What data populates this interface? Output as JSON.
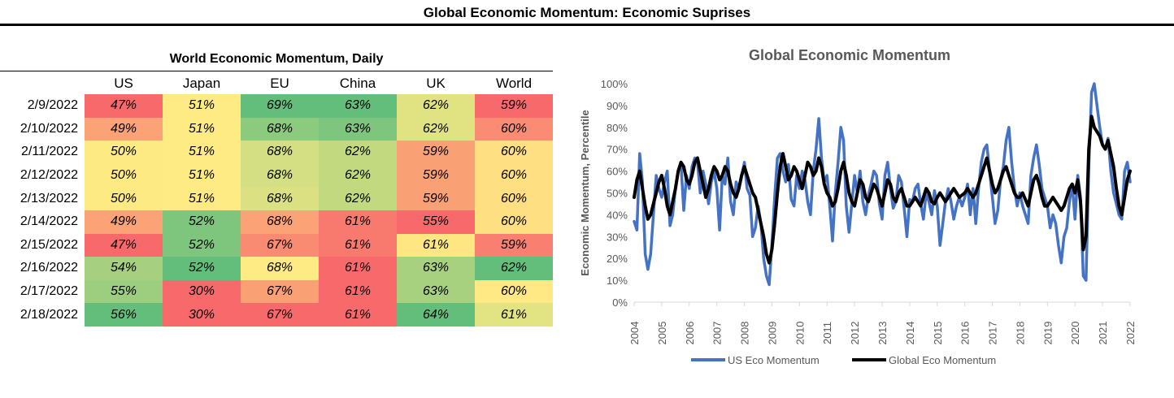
{
  "page": {
    "title": "Global Economic Momentum: Economic Suprises"
  },
  "heatmap": {
    "title": "World Economic Momentum, Daily",
    "columns": [
      "US",
      "Japan",
      "EU",
      "China",
      "UK",
      "World"
    ],
    "rows": [
      {
        "date": "2/9/2022",
        "values": [
          "47%",
          "51%",
          "69%",
          "63%",
          "62%",
          "59%"
        ],
        "colors": [
          "#f8696b",
          "#ffeb84",
          "#63be7b",
          "#63be7b",
          "#e1e383",
          "#f8696b"
        ]
      },
      {
        "date": "2/10/2022",
        "values": [
          "49%",
          "51%",
          "68%",
          "63%",
          "62%",
          "60%"
        ],
        "colors": [
          "#fba276",
          "#ffeb84",
          "#8ccb7e",
          "#7ec57d",
          "#e1e383",
          "#f98c72"
        ]
      },
      {
        "date": "2/11/2022",
        "values": [
          "50%",
          "51%",
          "68%",
          "62%",
          "59%",
          "60%"
        ],
        "colors": [
          "#feea83",
          "#ffeb84",
          "#d3df82",
          "#c2d980",
          "#faa075",
          "#fedf81"
        ]
      },
      {
        "date": "2/12/2022",
        "values": [
          "50%",
          "51%",
          "68%",
          "62%",
          "59%",
          "60%"
        ],
        "colors": [
          "#feea83",
          "#ffeb84",
          "#d3df82",
          "#c2d980",
          "#faa075",
          "#fedf81"
        ]
      },
      {
        "date": "2/13/2022",
        "values": [
          "50%",
          "51%",
          "68%",
          "62%",
          "59%",
          "60%"
        ],
        "colors": [
          "#feea83",
          "#ffeb84",
          "#dbe182",
          "#c2d980",
          "#faa075",
          "#fedf81"
        ]
      },
      {
        "date": "2/14/2022",
        "values": [
          "49%",
          "52%",
          "68%",
          "61%",
          "55%",
          "60%"
        ],
        "colors": [
          "#fba276",
          "#7ec57d",
          "#fba276",
          "#f8796e",
          "#f8696b",
          "#fedf81"
        ]
      },
      {
        "date": "2/15/2022",
        "values": [
          "47%",
          "52%",
          "67%",
          "61%",
          "61%",
          "59%"
        ],
        "colors": [
          "#f8696b",
          "#7ec57d",
          "#f98b72",
          "#f8796e",
          "#fee782",
          "#f98070"
        ]
      },
      {
        "date": "2/16/2022",
        "values": [
          "54%",
          "52%",
          "68%",
          "61%",
          "63%",
          "62%"
        ],
        "colors": [
          "#a6d07f",
          "#63be7b",
          "#ffeb84",
          "#f8696b",
          "#a8d17f",
          "#63be7b"
        ]
      },
      {
        "date": "2/17/2022",
        "values": [
          "55%",
          "30%",
          "67%",
          "61%",
          "63%",
          "60%"
        ],
        "colors": [
          "#9dcd7e",
          "#f8696b",
          "#faa075",
          "#f8696b",
          "#a8d17f",
          "#ffe984"
        ]
      },
      {
        "date": "2/18/2022",
        "values": [
          "56%",
          "30%",
          "67%",
          "61%",
          "64%",
          "61%"
        ],
        "colors": [
          "#63be7b",
          "#f8696b",
          "#f8696b",
          "#f8696b",
          "#63be7b",
          "#e2e383"
        ]
      }
    ]
  },
  "chart_data": {
    "type": "line",
    "title": "Global Economic Momentum",
    "xlabel": "",
    "ylabel": "Economic Momentum, Percentile",
    "ylim": [
      0,
      100
    ],
    "xlim": [
      2004,
      2022
    ],
    "y_ticks": [
      "0%",
      "10%",
      "20%",
      "30%",
      "40%",
      "50%",
      "60%",
      "70%",
      "80%",
      "90%",
      "100%"
    ],
    "x_ticks": [
      "2004",
      "2005",
      "2006",
      "2007",
      "2008",
      "2009",
      "2010",
      "2011",
      "2012",
      "2013",
      "2014",
      "2015",
      "2016",
      "2017",
      "2018",
      "2019",
      "2020",
      "2021",
      "2022"
    ],
    "legend_position": "bottom",
    "series": [
      {
        "name": "US Eco Momentum",
        "color": "#4472c4",
        "x": [
          2004.0,
          2004.1,
          2004.2,
          2004.3,
          2004.4,
          2004.5,
          2004.6,
          2004.7,
          2004.8,
          2004.9,
          2005.0,
          2005.1,
          2005.2,
          2005.3,
          2005.4,
          2005.5,
          2005.6,
          2005.7,
          2005.8,
          2005.9,
          2006.0,
          2006.1,
          2006.2,
          2006.3,
          2006.4,
          2006.5,
          2006.6,
          2006.7,
          2006.8,
          2006.9,
          2007.0,
          2007.1,
          2007.2,
          2007.3,
          2007.4,
          2007.5,
          2007.6,
          2007.7,
          2007.8,
          2007.9,
          2008.0,
          2008.1,
          2008.2,
          2008.3,
          2008.4,
          2008.5,
          2008.6,
          2008.7,
          2008.8,
          2008.9,
          2009.0,
          2009.1,
          2009.2,
          2009.3,
          2009.4,
          2009.5,
          2009.6,
          2009.7,
          2009.8,
          2009.9,
          2010.0,
          2010.1,
          2010.2,
          2010.3,
          2010.4,
          2010.5,
          2010.6,
          2010.7,
          2010.8,
          2010.9,
          2011.0,
          2011.1,
          2011.2,
          2011.3,
          2011.4,
          2011.5,
          2011.6,
          2011.7,
          2011.8,
          2011.9,
          2012.0,
          2012.1,
          2012.2,
          2012.3,
          2012.4,
          2012.5,
          2012.6,
          2012.7,
          2012.8,
          2012.9,
          2013.0,
          2013.1,
          2013.2,
          2013.3,
          2013.4,
          2013.5,
          2013.6,
          2013.7,
          2013.8,
          2013.9,
          2014.0,
          2014.1,
          2014.2,
          2014.3,
          2014.4,
          2014.5,
          2014.6,
          2014.7,
          2014.8,
          2014.9,
          2015.0,
          2015.1,
          2015.2,
          2015.3,
          2015.4,
          2015.5,
          2015.6,
          2015.7,
          2015.8,
          2015.9,
          2016.0,
          2016.1,
          2016.2,
          2016.3,
          2016.4,
          2016.5,
          2016.6,
          2016.7,
          2016.8,
          2016.9,
          2017.0,
          2017.1,
          2017.2,
          2017.3,
          2017.4,
          2017.5,
          2017.6,
          2017.7,
          2017.8,
          2017.9,
          2018.0,
          2018.1,
          2018.2,
          2018.3,
          2018.4,
          2018.5,
          2018.6,
          2018.7,
          2018.8,
          2018.9,
          2019.0,
          2019.1,
          2019.2,
          2019.3,
          2019.4,
          2019.5,
          2019.6,
          2019.7,
          2019.8,
          2019.9,
          2020.0,
          2020.1,
          2020.2,
          2020.3,
          2020.4,
          2020.5,
          2020.6,
          2020.7,
          2020.8,
          2020.9,
          2021.0,
          2021.1,
          2021.2,
          2021.3,
          2021.4,
          2021.5,
          2021.6,
          2021.7,
          2021.8,
          2021.9,
          2022.0
        ],
        "y": [
          37,
          33,
          68,
          55,
          22,
          15,
          22,
          40,
          58,
          52,
          48,
          55,
          60,
          35,
          40,
          52,
          60,
          63,
          42,
          58,
          52,
          62,
          66,
          64,
          50,
          60,
          54,
          45,
          55,
          60,
          52,
          33,
          58,
          54,
          66,
          46,
          40,
          55,
          52,
          58,
          64,
          52,
          49,
          30,
          34,
          44,
          36,
          20,
          12,
          8,
          26,
          48,
          66,
          68,
          60,
          55,
          63,
          47,
          44,
          58,
          52,
          60,
          56,
          46,
          40,
          60,
          70,
          84,
          66,
          55,
          58,
          44,
          28,
          50,
          64,
          80,
          74,
          44,
          32,
          45,
          58,
          50,
          60,
          46,
          40,
          49,
          54,
          60,
          58,
          45,
          38,
          58,
          64,
          52,
          43,
          46,
          58,
          55,
          43,
          30,
          47,
          46,
          52,
          54,
          45,
          38,
          50,
          46,
          40,
          51,
          44,
          26,
          36,
          46,
          52,
          46,
          38,
          44,
          48,
          44,
          48,
          54,
          40,
          52,
          36,
          52,
          64,
          70,
          72,
          60,
          48,
          36,
          42,
          56,
          62,
          74,
          80,
          64,
          52,
          44,
          50,
          44,
          40,
          36,
          58,
          66,
          72,
          63,
          52,
          48,
          44,
          34,
          40,
          36,
          26,
          18,
          30,
          34,
          46,
          54,
          38,
          58,
          48,
          12,
          10,
          62,
          96,
          100,
          90,
          80,
          72,
          70,
          75,
          60,
          50,
          45,
          40,
          38,
          60,
          64,
          55
        ]
      },
      {
        "name": "Global Eco Momentum",
        "color": "#000000",
        "x": [
          2004.0,
          2004.1,
          2004.2,
          2004.3,
          2004.4,
          2004.5,
          2004.6,
          2004.7,
          2004.8,
          2004.9,
          2005.0,
          2005.1,
          2005.2,
          2005.3,
          2005.4,
          2005.5,
          2005.6,
          2005.7,
          2005.8,
          2005.9,
          2006.0,
          2006.1,
          2006.2,
          2006.3,
          2006.4,
          2006.5,
          2006.6,
          2006.7,
          2006.8,
          2006.9,
          2007.0,
          2007.1,
          2007.2,
          2007.3,
          2007.4,
          2007.5,
          2007.6,
          2007.7,
          2007.8,
          2007.9,
          2008.0,
          2008.1,
          2008.2,
          2008.3,
          2008.4,
          2008.5,
          2008.6,
          2008.7,
          2008.8,
          2008.9,
          2009.0,
          2009.1,
          2009.2,
          2009.3,
          2009.4,
          2009.5,
          2009.6,
          2009.7,
          2009.8,
          2009.9,
          2010.0,
          2010.1,
          2010.2,
          2010.3,
          2010.4,
          2010.5,
          2010.6,
          2010.7,
          2010.8,
          2010.9,
          2011.0,
          2011.1,
          2011.2,
          2011.3,
          2011.4,
          2011.5,
          2011.6,
          2011.7,
          2011.8,
          2011.9,
          2012.0,
          2012.1,
          2012.2,
          2012.3,
          2012.4,
          2012.5,
          2012.6,
          2012.7,
          2012.8,
          2012.9,
          2013.0,
          2013.1,
          2013.2,
          2013.3,
          2013.4,
          2013.5,
          2013.6,
          2013.7,
          2013.8,
          2013.9,
          2014.0,
          2014.1,
          2014.2,
          2014.3,
          2014.4,
          2014.5,
          2014.6,
          2014.7,
          2014.8,
          2014.9,
          2015.0,
          2015.1,
          2015.2,
          2015.3,
          2015.4,
          2015.5,
          2015.6,
          2015.7,
          2015.8,
          2015.9,
          2016.0,
          2016.1,
          2016.2,
          2016.3,
          2016.4,
          2016.5,
          2016.6,
          2016.7,
          2016.8,
          2016.9,
          2017.0,
          2017.1,
          2017.2,
          2017.3,
          2017.4,
          2017.5,
          2017.6,
          2017.7,
          2017.8,
          2017.9,
          2018.0,
          2018.1,
          2018.2,
          2018.3,
          2018.4,
          2018.5,
          2018.6,
          2018.7,
          2018.8,
          2018.9,
          2019.0,
          2019.1,
          2019.2,
          2019.3,
          2019.4,
          2019.5,
          2019.6,
          2019.7,
          2019.8,
          2019.9,
          2020.0,
          2020.1,
          2020.2,
          2020.3,
          2020.4,
          2020.5,
          2020.6,
          2020.7,
          2020.8,
          2020.9,
          2021.0,
          2021.1,
          2021.2,
          2021.3,
          2021.4,
          2021.5,
          2021.6,
          2021.7,
          2021.8,
          2021.9,
          2022.0
        ],
        "y": [
          48,
          56,
          60,
          52,
          44,
          38,
          40,
          45,
          50,
          55,
          58,
          52,
          44,
          40,
          46,
          52,
          60,
          64,
          62,
          56,
          54,
          58,
          64,
          66,
          60,
          54,
          48,
          52,
          58,
          62,
          60,
          56,
          58,
          62,
          60,
          54,
          50,
          48,
          52,
          58,
          62,
          58,
          54,
          50,
          48,
          42,
          36,
          30,
          22,
          18,
          24,
          36,
          50,
          62,
          68,
          62,
          56,
          58,
          62,
          60,
          56,
          52,
          58,
          64,
          62,
          58,
          60,
          66,
          62,
          54,
          50,
          48,
          44,
          46,
          52,
          60,
          64,
          58,
          50,
          46,
          44,
          50,
          56,
          54,
          48,
          46,
          50,
          54,
          52,
          48,
          44,
          50,
          56,
          54,
          48,
          46,
          50,
          52,
          48,
          44,
          44,
          46,
          48,
          46,
          44,
          48,
          52,
          50,
          46,
          45,
          48,
          50,
          48,
          46,
          48,
          50,
          52,
          50,
          48,
          49,
          50,
          52,
          50,
          48,
          50,
          54,
          58,
          62,
          66,
          60,
          54,
          50,
          52,
          56,
          60,
          62,
          58,
          54,
          50,
          48,
          48,
          50,
          47,
          44,
          50,
          56,
          58,
          54,
          48,
          44,
          44,
          46,
          48,
          46,
          44,
          42,
          44,
          48,
          52,
          54,
          50,
          56,
          46,
          24,
          30,
          70,
          85,
          80,
          78,
          76,
          72,
          70,
          74,
          68,
          62,
          52,
          44,
          40,
          48,
          56,
          60
        ]
      }
    ]
  }
}
